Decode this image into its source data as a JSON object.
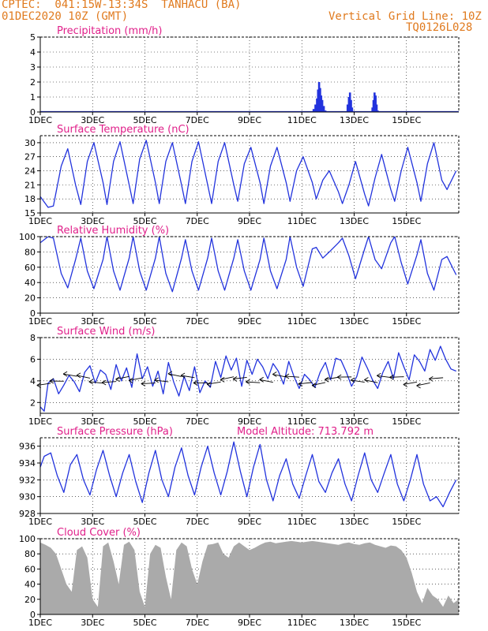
{
  "header": {
    "line1": "CPTEC:  041:15W-13:34S  TANHACU (BA)",
    "line2": "01DEC2020 10Z (GMT)",
    "grid_note": "Vertical Grid Line: 10Z",
    "code": "TQ0126L028"
  },
  "x_axis": {
    "ticks": [
      {
        "day": 1,
        "label": "1DEC"
      },
      {
        "day": 3,
        "label": "3DEC"
      },
      {
        "day": 5,
        "label": "5DEC"
      },
      {
        "day": 7,
        "label": "7DEC"
      },
      {
        "day": 9,
        "label": "9DEC"
      },
      {
        "day": 11,
        "label": "11DEC"
      },
      {
        "day": 13,
        "label": "13DEC"
      },
      {
        "day": 15,
        "label": "15DEC"
      }
    ],
    "range_days": [
      1,
      17
    ]
  },
  "colors": {
    "title": "#e0208a",
    "header": "#e07a1e",
    "line": "#2233dd",
    "precip": "#2233dd",
    "cloud": "#aaaaaa",
    "frame": "#000000"
  },
  "model_altitude": "Model Altitude: 713.792 m",
  "chart_data": [
    {
      "type": "bar",
      "title": "Precipitation (mm/h)",
      "ylim": [
        0,
        5
      ],
      "yticks": [
        "0",
        "1",
        "2",
        "3",
        "4",
        "5"
      ],
      "x": [
        11.45,
        11.52,
        11.58,
        11.62,
        11.66,
        11.7,
        11.74,
        11.78,
        11.84,
        11.9,
        12.75,
        12.8,
        12.84,
        12.88,
        12.92,
        13.7,
        13.74,
        13.78,
        13.82,
        13.86,
        13.9,
        8.4,
        10.3
      ],
      "values": [
        0.2,
        0.5,
        0.9,
        1.5,
        2.0,
        1.6,
        1.1,
        0.8,
        0.4,
        0.1,
        0.5,
        1.0,
        1.3,
        0.8,
        0.3,
        0.3,
        0.8,
        1.3,
        1.1,
        0.5,
        0.1,
        0.05,
        0.04
      ]
    },
    {
      "type": "line",
      "title": "Surface Temperature (nC)",
      "ylim": [
        15,
        31.5
      ],
      "yticks": [
        "15",
        "18",
        "21",
        "24",
        "27",
        "30"
      ],
      "x": [
        1.0,
        1.3,
        1.5,
        1.8,
        2.05,
        2.35,
        2.55,
        2.8,
        3.05,
        3.4,
        3.55,
        3.8,
        4.05,
        4.4,
        4.55,
        4.8,
        5.05,
        5.4,
        5.55,
        5.8,
        6.05,
        6.4,
        6.55,
        6.8,
        7.05,
        7.4,
        7.55,
        7.8,
        8.05,
        8.4,
        8.55,
        8.8,
        9.05,
        9.4,
        9.55,
        9.8,
        10.05,
        10.4,
        10.55,
        10.8,
        11.05,
        11.4,
        11.55,
        11.8,
        12.05,
        12.4,
        12.55,
        12.8,
        13.05,
        13.4,
        13.55,
        13.8,
        14.05,
        14.4,
        14.55,
        14.8,
        15.05,
        15.4,
        15.55,
        15.8,
        16.05,
        16.35,
        16.55,
        16.9
      ],
      "values": [
        18.5,
        16.2,
        16.5,
        25.0,
        28.7,
        21.0,
        16.8,
        26.0,
        30.0,
        21.5,
        16.8,
        26.0,
        30.2,
        21.0,
        17.0,
        26.5,
        30.5,
        21.5,
        17.0,
        26.0,
        30.0,
        21.0,
        17.0,
        26.0,
        30.2,
        21.0,
        17.0,
        26.0,
        30.0,
        21.0,
        17.5,
        25.5,
        29.0,
        21.5,
        17.0,
        25.0,
        29.0,
        21.5,
        17.5,
        24.0,
        27.0,
        21.5,
        18.0,
        22.0,
        24.0,
        19.5,
        17.0,
        21.0,
        26.0,
        19.0,
        16.5,
        22.5,
        27.5,
        20.0,
        17.5,
        24.0,
        29.0,
        21.5,
        17.5,
        25.5,
        30.0,
        22.0,
        20.0,
        24.0
      ]
    },
    {
      "type": "line",
      "title": "Relative Humidity (%)",
      "ylim": [
        0,
        100
      ],
      "yticks": [
        "0",
        "20",
        "40",
        "60",
        "80",
        "100"
      ],
      "x": [
        1.0,
        1.3,
        1.5,
        1.8,
        2.05,
        2.35,
        2.55,
        2.8,
        3.05,
        3.4,
        3.55,
        3.8,
        4.05,
        4.4,
        4.55,
        4.8,
        5.05,
        5.4,
        5.55,
        5.8,
        6.05,
        6.4,
        6.55,
        6.8,
        7.05,
        7.4,
        7.55,
        7.8,
        8.05,
        8.4,
        8.55,
        8.8,
        9.05,
        9.4,
        9.55,
        9.8,
        10.05,
        10.4,
        10.55,
        10.8,
        11.05,
        11.4,
        11.55,
        11.8,
        12.05,
        12.4,
        12.55,
        12.8,
        13.05,
        13.4,
        13.55,
        13.8,
        14.05,
        14.4,
        14.55,
        14.8,
        15.05,
        15.4,
        15.55,
        15.8,
        16.05,
        16.35,
        16.55,
        16.9
      ],
      "values": [
        92,
        100,
        98,
        52,
        33,
        70,
        98,
        55,
        32,
        70,
        100,
        55,
        30,
        72,
        100,
        55,
        30,
        72,
        100,
        52,
        28,
        72,
        96,
        55,
        30,
        72,
        98,
        55,
        30,
        72,
        96,
        55,
        30,
        70,
        98,
        55,
        32,
        70,
        100,
        60,
        35,
        84,
        86,
        72,
        80,
        92,
        98,
        75,
        45,
        84,
        100,
        70,
        58,
        92,
        100,
        66,
        38,
        76,
        96,
        52,
        30,
        70,
        74,
        50
      ]
    },
    {
      "type": "line",
      "title": "Surface Wind (m/s)",
      "ylim": [
        1,
        8
      ],
      "yticks": [
        "2",
        "4",
        "6",
        "8"
      ],
      "x": [
        1.0,
        1.15,
        1.3,
        1.5,
        1.7,
        1.9,
        2.1,
        2.3,
        2.5,
        2.7,
        2.9,
        3.1,
        3.3,
        3.5,
        3.7,
        3.9,
        4.1,
        4.3,
        4.5,
        4.7,
        4.9,
        5.1,
        5.3,
        5.5,
        5.7,
        5.9,
        6.1,
        6.3,
        6.5,
        6.7,
        6.9,
        7.1,
        7.3,
        7.5,
        7.7,
        7.9,
        8.1,
        8.3,
        8.5,
        8.7,
        8.9,
        9.1,
        9.3,
        9.5,
        9.7,
        9.9,
        10.1,
        10.3,
        10.5,
        10.7,
        10.9,
        11.1,
        11.3,
        11.5,
        11.7,
        11.9,
        12.1,
        12.3,
        12.5,
        12.7,
        12.9,
        13.1,
        13.3,
        13.5,
        13.7,
        13.9,
        14.1,
        14.3,
        14.5,
        14.7,
        14.9,
        15.1,
        15.3,
        15.5,
        15.7,
        15.9,
        16.1,
        16.3,
        16.5,
        16.7,
        16.9
      ],
      "values": [
        1.6,
        1.2,
        3.8,
        4.2,
        2.8,
        3.6,
        4.5,
        3.9,
        3.0,
        4.8,
        5.4,
        3.8,
        5.0,
        4.6,
        3.2,
        5.5,
        4.0,
        5.2,
        3.4,
        6.5,
        4.2,
        5.3,
        3.5,
        4.9,
        2.8,
        5.7,
        3.9,
        2.6,
        4.4,
        3.1,
        5.3,
        2.9,
        4.0,
        3.4,
        5.8,
        4.3,
        6.3,
        5.0,
        6.1,
        3.5,
        5.9,
        4.6,
        6.0,
        5.3,
        4.2,
        5.6,
        4.9,
        3.7,
        5.8,
        4.4,
        3.3,
        4.6,
        4.1,
        3.4,
        4.8,
        5.7,
        4.1,
        6.1,
        5.9,
        4.8,
        3.5,
        4.4,
        6.2,
        5.2,
        4.1,
        3.3,
        4.8,
        5.8,
        4.2,
        6.6,
        5.3,
        4.1,
        6.4,
        5.8,
        4.9,
        6.9,
        5.9,
        7.2,
        6.0,
        5.1,
        4.9
      ]
    },
    {
      "type": "line",
      "title": "Surface Pressure (hPa)",
      "ylim": [
        928,
        937
      ],
      "yticks": [
        "928",
        "930",
        "932",
        "934",
        "936"
      ],
      "x": [
        1.0,
        1.15,
        1.4,
        1.65,
        1.9,
        2.15,
        2.4,
        2.65,
        2.9,
        3.15,
        3.4,
        3.65,
        3.9,
        4.15,
        4.4,
        4.65,
        4.9,
        5.15,
        5.4,
        5.65,
        5.9,
        6.15,
        6.4,
        6.65,
        6.9,
        7.15,
        7.4,
        7.65,
        7.9,
        8.15,
        8.4,
        8.65,
        8.9,
        9.15,
        9.4,
        9.65,
        9.9,
        10.15,
        10.4,
        10.65,
        10.9,
        11.15,
        11.4,
        11.65,
        11.9,
        12.15,
        12.4,
        12.65,
        12.9,
        13.15,
        13.4,
        13.65,
        13.9,
        14.15,
        14.4,
        14.65,
        14.9,
        15.15,
        15.4,
        15.65,
        15.9,
        16.15,
        16.4,
        16.65,
        16.9
      ],
      "values": [
        933.5,
        934.8,
        935.2,
        932.5,
        930.5,
        933.8,
        935.0,
        932.0,
        930.2,
        933.2,
        935.5,
        932.5,
        930.0,
        932.8,
        935.0,
        931.8,
        929.3,
        932.8,
        935.5,
        932.0,
        930.0,
        933.5,
        935.8,
        932.5,
        930.2,
        933.5,
        936.0,
        932.8,
        930.2,
        933.0,
        936.5,
        933.0,
        930.0,
        933.5,
        936.2,
        932.0,
        929.5,
        932.5,
        934.5,
        931.5,
        929.8,
        932.5,
        935.0,
        931.8,
        930.5,
        932.8,
        934.5,
        931.5,
        929.5,
        932.5,
        935.2,
        932.0,
        930.5,
        932.8,
        935.0,
        931.5,
        929.5,
        932.0,
        935.0,
        931.5,
        929.5,
        930.0,
        928.8,
        930.5,
        932.0
      ]
    },
    {
      "type": "area",
      "title": "Cloud Cover (%)",
      "ylim": [
        0,
        100
      ],
      "yticks": [
        "0",
        "20",
        "40",
        "60",
        "80",
        "100"
      ],
      "x": [
        1.0,
        1.2,
        1.4,
        1.6,
        1.8,
        2.0,
        2.2,
        2.4,
        2.6,
        2.8,
        3.0,
        3.2,
        3.4,
        3.6,
        3.8,
        4.0,
        4.2,
        4.4,
        4.6,
        4.8,
        5.0,
        5.2,
        5.4,
        5.6,
        5.8,
        6.0,
        6.2,
        6.4,
        6.6,
        6.8,
        7.0,
        7.2,
        7.4,
        7.6,
        7.8,
        8.0,
        8.2,
        8.4,
        8.6,
        8.8,
        9.0,
        9.2,
        9.4,
        9.6,
        9.8,
        10.0,
        10.2,
        10.4,
        10.6,
        10.8,
        11.0,
        11.2,
        11.4,
        11.6,
        11.8,
        12.0,
        12.2,
        12.4,
        12.6,
        12.8,
        13.0,
        13.2,
        13.4,
        13.6,
        13.8,
        14.0,
        14.2,
        14.4,
        14.6,
        14.8,
        15.0,
        15.2,
        15.4,
        15.6,
        15.8,
        16.0,
        16.2,
        16.4,
        16.6,
        16.8,
        17.0
      ],
      "values": [
        95,
        92,
        88,
        80,
        60,
        40,
        30,
        85,
        90,
        75,
        20,
        10,
        90,
        95,
        70,
        40,
        92,
        96,
        85,
        30,
        10,
        80,
        92,
        88,
        50,
        20,
        85,
        95,
        90,
        60,
        40,
        70,
        92,
        93,
        95,
        80,
        75,
        90,
        95,
        90,
        85,
        88,
        92,
        95,
        96,
        94,
        95,
        96,
        97,
        96,
        95,
        96,
        97,
        96,
        95,
        94,
        93,
        92,
        94,
        95,
        93,
        92,
        94,
        95,
        92,
        90,
        88,
        91,
        90,
        85,
        75,
        55,
        30,
        15,
        35,
        25,
        20,
        10,
        25,
        15,
        20
      ]
    }
  ]
}
